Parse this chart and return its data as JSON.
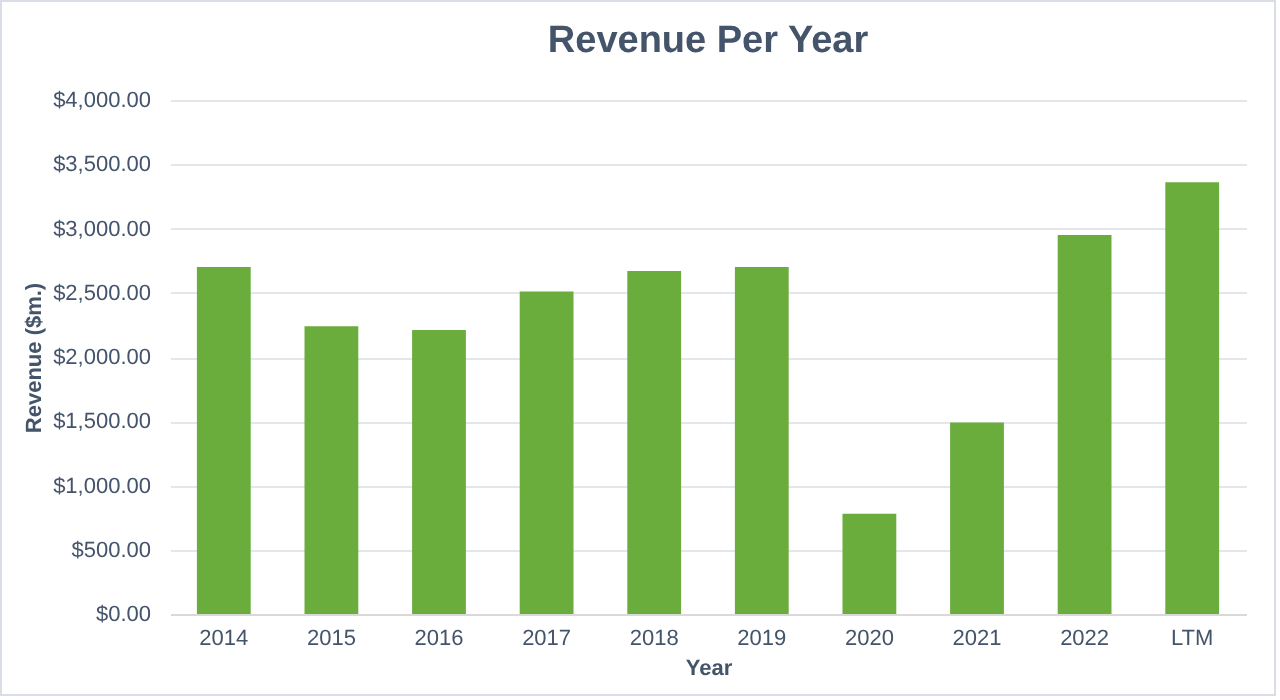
{
  "chart_data": {
    "type": "bar",
    "title": "Revenue Per Year",
    "xlabel": "Year",
    "ylabel": "Revenue ($m.)",
    "categories": [
      "2014",
      "2015",
      "2016",
      "2017",
      "2018",
      "2019",
      "2020",
      "2021",
      "2022",
      "LTM"
    ],
    "values": [
      2700,
      2240,
      2210,
      2510,
      2670,
      2700,
      780,
      1490,
      2950,
      3360
    ],
    "color": "#6aad3d",
    "ylim": [
      0,
      4000
    ],
    "yticks": [
      {
        "value": 0,
        "label": "$0.00"
      },
      {
        "value": 500,
        "label": "$500.00"
      },
      {
        "value": 1000,
        "label": "$1,000.00"
      },
      {
        "value": 1500,
        "label": "$1,500.00"
      },
      {
        "value": 2000,
        "label": "$2,000.00"
      },
      {
        "value": 2500,
        "label": "$2,500.00"
      },
      {
        "value": 3000,
        "label": "$3,000.00"
      },
      {
        "value": 3500,
        "label": "$3,500.00"
      },
      {
        "value": 4000,
        "label": "$4,000.00"
      }
    ],
    "grid": "y"
  }
}
